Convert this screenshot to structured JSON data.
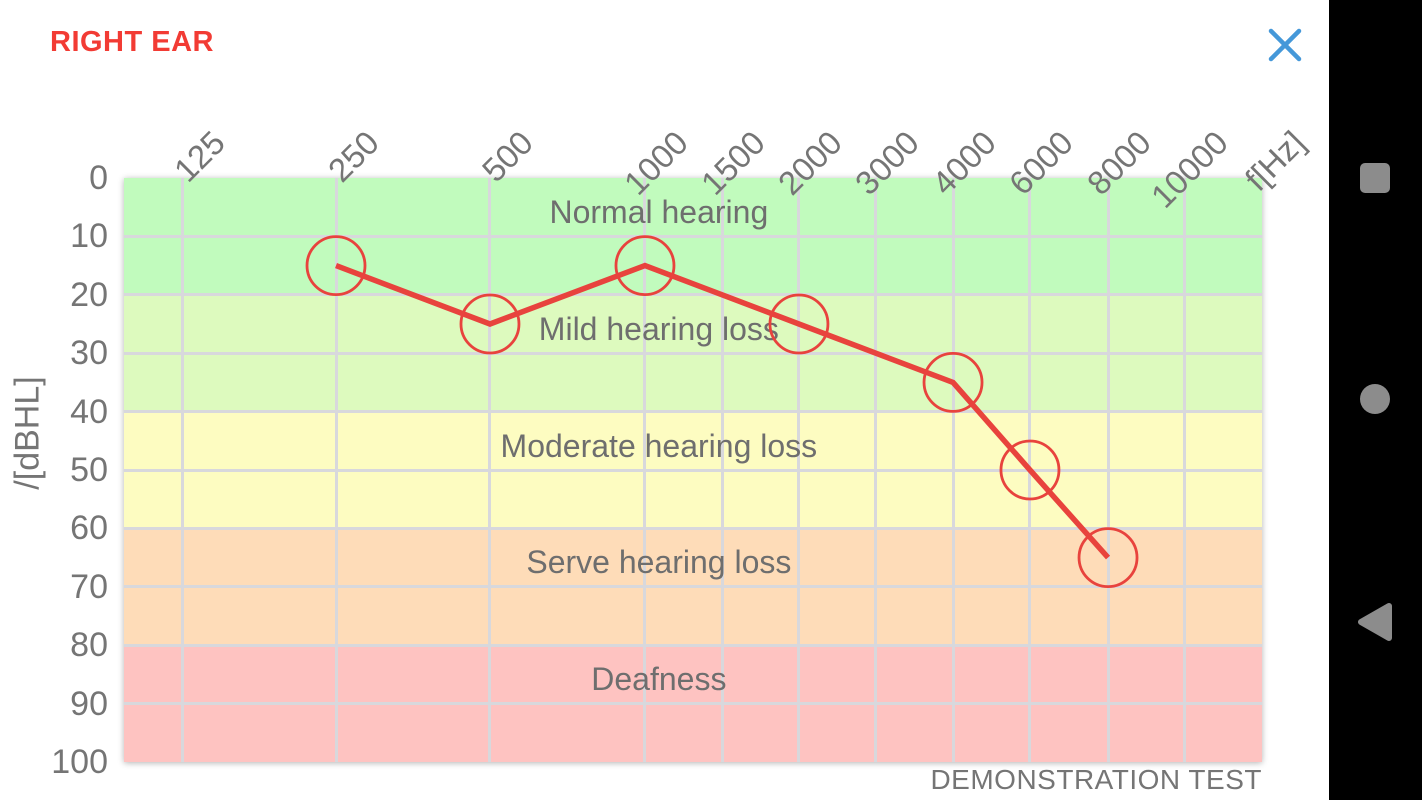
{
  "header": {
    "title": "RIGHT EAR",
    "close_icon": "close-icon"
  },
  "footer": {
    "note": "DEMONSTRATION TEST"
  },
  "colors": {
    "title_red": "#f23b34",
    "line_red": "#e8433d",
    "close_blue": "#4598d9",
    "grid_gray": "#d8d8dc",
    "label_gray": "#757575",
    "nav_icon_gray": "#8c8c8c",
    "nav_bar_black": "#000000"
  },
  "chart_data": {
    "type": "line",
    "title": "RIGHT EAR",
    "grid": true,
    "x_axis": {
      "label": "f[Hz]",
      "ticks": [
        {
          "label": "125",
          "f": 125,
          "x_pct": 0.051
        },
        {
          "label": "250",
          "f": 250,
          "x_pct": 0.1863
        },
        {
          "label": "500",
          "f": 500,
          "x_pct": 0.3216
        },
        {
          "label": "1000",
          "f": 1000,
          "x_pct": 0.4578
        },
        {
          "label": "1500",
          "f": 1500,
          "x_pct": 0.5255
        },
        {
          "label": "2000",
          "f": 2000,
          "x_pct": 0.5931
        },
        {
          "label": "3000",
          "f": 3000,
          "x_pct": 0.6608
        },
        {
          "label": "4000",
          "f": 4000,
          "x_pct": 0.7285
        },
        {
          "label": "6000",
          "f": 6000,
          "x_pct": 0.7961
        },
        {
          "label": "8000",
          "f": 8000,
          "x_pct": 0.8647
        },
        {
          "label": "10000",
          "f": 10000,
          "x_pct": 0.9323
        }
      ]
    },
    "y_axis": {
      "label": "/[dBHL]",
      "min": 0,
      "max": 100,
      "step": 10,
      "inverted_down": true,
      "tick_labels": [
        "0",
        "10",
        "20",
        "30",
        "40",
        "50",
        "60",
        "70",
        "80",
        "90",
        "100"
      ]
    },
    "zones": [
      {
        "name": "Normal hearing",
        "from": 0,
        "to": 20,
        "color": "#c1fbbd"
      },
      {
        "name": "Mild hearing loss",
        "from": 20,
        "to": 40,
        "color": "#ddfabe"
      },
      {
        "name": "Moderate hearing loss",
        "from": 40,
        "to": 60,
        "color": "#fdfcc1"
      },
      {
        "name": "Serve hearing loss",
        "from": 60,
        "to": 80,
        "color": "#fedcb8"
      },
      {
        "name": "Deafness",
        "from": 80,
        "to": 100,
        "color": "#fec3c1"
      }
    ],
    "series": [
      {
        "name": "right-ear-thresholds",
        "color": "#e8433d",
        "marker": "circle",
        "points": [
          {
            "f": 250,
            "dB": 15
          },
          {
            "f": 500,
            "dB": 25
          },
          {
            "f": 1000,
            "dB": 15
          },
          {
            "f": 2000,
            "dB": 25
          },
          {
            "f": 4000,
            "dB": 35
          },
          {
            "f": 6000,
            "dB": 50
          },
          {
            "f": 8000,
            "dB": 65
          }
        ]
      }
    ],
    "annotation": "DEMONSTRATION TEST"
  },
  "nav_bar": {
    "buttons": [
      {
        "name": "recents",
        "icon": "square"
      },
      {
        "name": "home",
        "icon": "circle"
      },
      {
        "name": "back",
        "icon": "triangle"
      }
    ]
  }
}
